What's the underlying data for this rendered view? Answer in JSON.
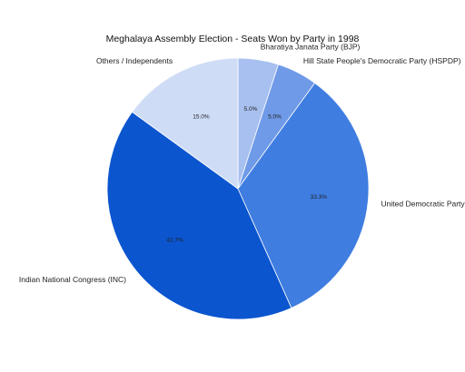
{
  "chart_data": {
    "type": "pie",
    "title": "Meghalaya Assembly Election - Seats Won by Party in 1998",
    "start_angle_deg": 270,
    "direction": "clockwise",
    "slices": [
      {
        "label": "Bharatiya Janata Party (BJP)",
        "value": 5.0,
        "pct_label": "5.0%",
        "color": "#a7c0f0"
      },
      {
        "label": "Hill State People's Democratic Party (HSPDP)",
        "value": 5.0,
        "pct_label": "5.0%",
        "color": "#6f9ae8"
      },
      {
        "label": "United Democratic Party",
        "value": 33.3,
        "pct_label": "33.3%",
        "color": "#3f7de0"
      },
      {
        "label": "Indian National Congress (INC)",
        "value": 41.7,
        "pct_label": "41.7%",
        "color": "#0b55cf"
      },
      {
        "label": "Others / Independents",
        "value": 15.0,
        "pct_label": "15.0%",
        "color": "#cfdcf6"
      }
    ]
  }
}
